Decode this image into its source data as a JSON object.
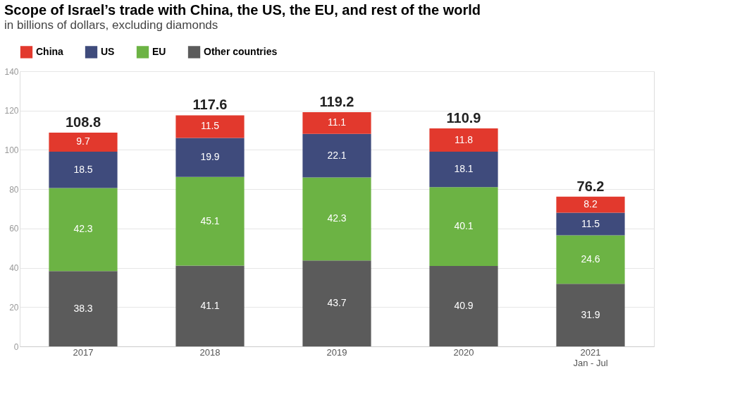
{
  "chart_data": {
    "type": "bar",
    "stacked": true,
    "title": "Scope of Israel’s trade with China, the US, the EU, and rest of the world",
    "subtitle": "in billions of dollars, excluding diamonds",
    "categories": [
      "2017",
      "2018",
      "2019",
      "2020",
      "2021\nJan - Jul"
    ],
    "series": [
      {
        "name": "Other countries",
        "color": "#5b5b5b",
        "values": [
          38.3,
          41.1,
          43.7,
          40.9,
          31.9
        ]
      },
      {
        "name": "EU",
        "color": "#6cb344",
        "values": [
          42.3,
          45.1,
          42.3,
          40.1,
          24.6
        ]
      },
      {
        "name": "US",
        "color": "#3f4b7c",
        "values": [
          18.5,
          19.9,
          22.1,
          18.1,
          11.5
        ]
      },
      {
        "name": "China",
        "color": "#e2392d",
        "values": [
          9.7,
          11.5,
          11.1,
          11.8,
          8.2
        ]
      }
    ],
    "totals": [
      "108.8",
      "117.6",
      "119.2",
      "110.9",
      "76.2"
    ],
    "data_labels": true,
    "ylim": [
      0,
      140
    ],
    "yticks": [
      0,
      20,
      40,
      60,
      80,
      100,
      120,
      140
    ],
    "grid": "y",
    "legend": "top"
  }
}
